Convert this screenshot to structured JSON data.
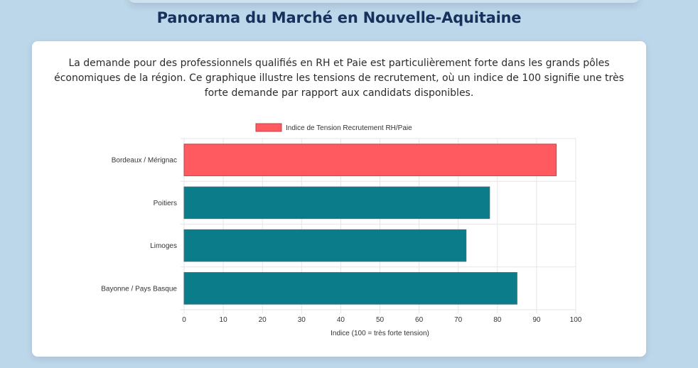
{
  "page": {
    "title": "Panorama du Marché en Nouvelle-Aquitaine",
    "intro": "La demande pour des professionnels qualifiés en RH et Paie est particulièrement forte dans les grands pôles économiques de la région. Ce graphique illustre les tensions de recrutement, où un indice de 100 signifie une très forte demande par rapport aux candidats disponibles."
  },
  "colors": {
    "highlight": "#ff5a5f",
    "highlight_border": "#b94448",
    "bar": "#0a7c8a",
    "bar_border": "#3e6f78",
    "grid": "#e6e6e6"
  },
  "chart_data": {
    "type": "bar",
    "orientation": "horizontal",
    "categories": [
      "Bordeaux / Mérignac",
      "Poitiers",
      "Limoges",
      "Bayonne / Pays Basque"
    ],
    "series": [
      {
        "name": "Indice de Tension Recrutement RH/Paie",
        "values": [
          95,
          78,
          72,
          85
        ]
      }
    ],
    "highlight_index": 0,
    "xlabel": "Indice (100 = très forte tension)",
    "ylabel": "",
    "xlim": [
      0,
      100
    ],
    "x_ticks": [
      0,
      10,
      20,
      30,
      40,
      50,
      60,
      70,
      80,
      90,
      100
    ],
    "grid": true,
    "legend_position": "top"
  }
}
